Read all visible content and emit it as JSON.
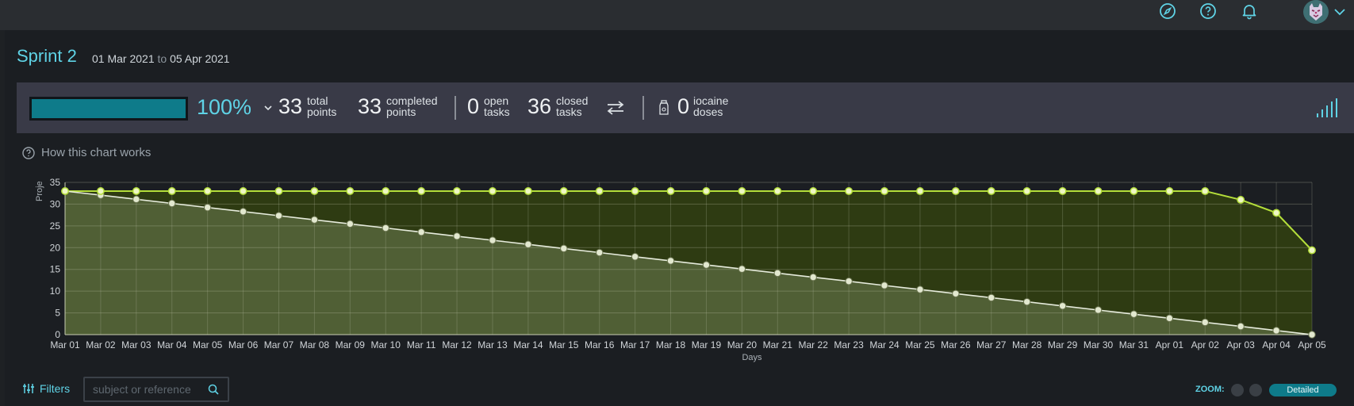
{
  "sprint": {
    "title": "Sprint 2",
    "start": "01 Mar 2021",
    "to": "to",
    "end": "05 Apr 2021"
  },
  "stats": {
    "progress_fraction": 1.0,
    "percent": "100%",
    "total_points_value": "33",
    "total_points_label1": "total",
    "total_points_label2": "points",
    "completed_points_value": "33",
    "completed_points_label1": "completed",
    "completed_points_label2": "points",
    "open_tasks_value": "0",
    "open_tasks_label1": "open",
    "open_tasks_label2": "tasks",
    "closed_tasks_value": "36",
    "closed_tasks_label1": "closed",
    "closed_tasks_label2": "tasks",
    "iocaine_value": "0",
    "iocaine_label1": "iocaine",
    "iocaine_label2": "doses"
  },
  "how_chart_works": "How this chart works",
  "filters": {
    "label": "Filters",
    "search_placeholder": "subject or reference"
  },
  "zoom": {
    "label": "ZOOM:",
    "active": "Detailed"
  },
  "icons": {
    "top": [
      "compass-icon",
      "help-icon",
      "bell-icon"
    ],
    "stats_switch": "swap-arrows-icon",
    "iocaine": "bottle-icon",
    "graph_toggle": "bar-graph-icon"
  },
  "colors": {
    "accent": "#5fd3e6",
    "progress_fill": "#0e7b8a",
    "stats_bg": "#393a47",
    "real_line": "#b4de3a",
    "optimal_line": "#e6ebdc",
    "fill_optimal": "#505f35",
    "fill_real": "#2e3b12"
  },
  "chart_data": {
    "type": "line",
    "xlabel": "Days",
    "ylabel": "Proje",
    "ylim": [
      0,
      35
    ],
    "yticks": [
      0,
      5,
      10,
      15,
      20,
      25,
      30,
      35
    ],
    "grid": true,
    "x": [
      "Mar 01",
      "Mar 02",
      "Mar 03",
      "Mar 04",
      "Mar 05",
      "Mar 06",
      "Mar 07",
      "Mar 08",
      "Mar 09",
      "Mar 10",
      "Mar 11",
      "Mar 12",
      "Mar 13",
      "Mar 14",
      "Mar 15",
      "Mar 16",
      "Mar 17",
      "Mar 18",
      "Mar 19",
      "Mar 20",
      "Mar 21",
      "Mar 22",
      "Mar 23",
      "Mar 24",
      "Mar 25",
      "Mar 26",
      "Mar 27",
      "Mar 28",
      "Mar 29",
      "Mar 30",
      "Mar 31",
      "Apr 01",
      "Apr 02",
      "Apr 03",
      "Apr 04",
      "Apr 05"
    ],
    "series": [
      {
        "values": [
          33,
          33,
          33,
          33,
          33,
          33,
          33,
          33,
          33,
          33,
          33,
          33,
          33,
          33,
          33,
          33,
          33,
          33,
          33,
          33,
          33,
          33,
          33,
          33,
          33,
          33,
          33,
          33,
          33,
          33,
          33,
          33,
          33,
          31,
          28,
          19.4
        ]
      },
      {
        "values": [
          33,
          32.06,
          31.11,
          30.17,
          29.23,
          28.29,
          27.34,
          26.4,
          25.46,
          24.51,
          23.57,
          22.63,
          21.69,
          20.74,
          19.8,
          18.86,
          17.91,
          16.97,
          16.03,
          15.09,
          14.14,
          13.2,
          12.26,
          11.31,
          10.37,
          9.43,
          8.49,
          7.54,
          6.6,
          5.66,
          4.71,
          3.77,
          2.83,
          1.89,
          0.94,
          0
        ]
      }
    ]
  }
}
